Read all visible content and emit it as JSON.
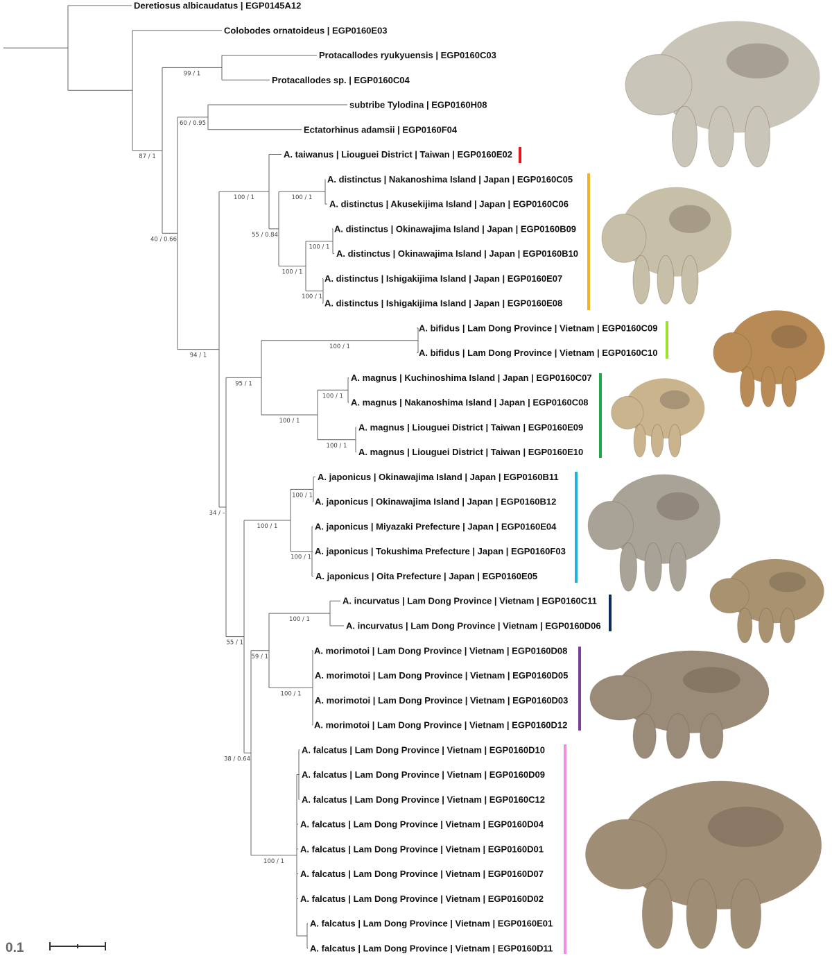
{
  "tips": [
    "Deretiosus albicaudatus | EGP0145A12",
    "Colobodes ornatoideus | EGP0160E03",
    "Protacallodes ryukyuensis | EGP0160C03",
    "Protacallodes sp. | EGP0160C04",
    "subtribe Tylodina | EGP0160H08",
    "Ectatorhinus adamsii | EGP0160F04",
    "A. taiwanus | Liouguei District | Taiwan | EGP0160E02",
    "A. distinctus | Nakanoshima Island | Japan | EGP0160C05",
    "A. distinctus | Akusekijima Island | Japan | EGP0160C06",
    "A. distinctus | Okinawajima Island | Japan | EGP0160B09",
    "A. distinctus | Okinawajima Island | Japan | EGP0160B10",
    "A. distinctus | Ishigakijima Island | Japan | EGP0160E07",
    "A. distinctus | Ishigakijima Island | Japan | EGP0160E08",
    "A. bifidus | Lam Dong Province | Vietnam | EGP0160C09",
    "A. bifidus | Lam Dong Province | Vietnam | EGP0160C10",
    "A. magnus | Kuchinoshima Island | Japan | EGP0160C07",
    "A. magnus | Nakanoshima Island | Japan | EGP0160C08",
    "A. magnus | Liouguei District | Taiwan | EGP0160E09",
    "A. magnus | Liouguei District | Taiwan | EGP0160E10",
    "A. japonicus | Okinawajima Island | Japan | EGP0160B11",
    "A. japonicus | Okinawajima Island | Japan | EGP0160B12",
    "A. japonicus | Miyazaki Prefecture | Japan | EGP0160E04",
    "A. japonicus | Tokushima Prefecture | Japan | EGP0160F03",
    "A. japonicus | Oita Prefecture | Japan | EGP0160E05",
    "A. incurvatus | Lam Dong Province | Vietnam | EGP0160C11",
    "A. incurvatus | Lam Dong Province | Vietnam | EGP0160D06",
    "A. morimotoi | Lam Dong Province | Vietnam | EGP0160D08",
    "A. morimotoi | Lam Dong Province | Vietnam | EGP0160D05",
    "A. morimotoi | Lam Dong Province | Vietnam | EGP0160D03",
    "A. morimotoi | Lam Dong Province | Vietnam | EGP0160D12",
    "A. falcatus | Lam Dong Province | Vietnam | EGP0160D10",
    "A. falcatus | Lam Dong Province | Vietnam | EGP0160D09",
    "A. falcatus | Lam Dong Province | Vietnam | EGP0160C12",
    "A. falcatus | Lam Dong Province | Vietnam | EGP0160D04",
    "A. falcatus | Lam Dong Province | Vietnam | EGP0160D01",
    "A. falcatus | Lam Dong Province | Vietnam | EGP0160D07",
    "A. falcatus | Lam Dong Province | Vietnam | EGP0160D02",
    "A. falcatus | Lam Dong Province | Vietnam | EGP0160E01",
    "A. falcatus | Lam Dong Province | Vietnam | EGP0160D11"
  ],
  "supports": {
    "C": "87 / 1",
    "D": "99 / 1",
    "E": "40 / 0.66",
    "F": "60 / 0.95",
    "G": "94 / 1",
    "H": "100 / 1",
    "J": "55 / 0.84",
    "K": "100 / 1",
    "L": "100 / 1",
    "M": "100 / 1",
    "N": "100 / 1",
    "I": "34 / –",
    "O": "95 / 1",
    "Q": "100 / 1",
    "R": "100 / 1",
    "S": "100 / 1",
    "T": "100 / 1",
    "P": "55 / 1",
    "U": "100 / 1",
    "W": "100 / 1",
    "X": "100 / 1",
    "V": "38 / 0.64",
    "Y": "59 / 1",
    "Inc": "100 / 1",
    "Mor": "100 / 1",
    "Z": "100 / 1"
  },
  "clades": [
    {
      "name": "A. taiwanus",
      "color": "#e8141c"
    },
    {
      "name": "A. distinctus",
      "color": "#f0b323"
    },
    {
      "name": "A. bifidus",
      "color": "#9be22e"
    },
    {
      "name": "A. magnus",
      "color": "#1fa84a"
    },
    {
      "name": "A. japonicus",
      "color": "#1fb0e0"
    },
    {
      "name": "A. incurvatus",
      "color": "#0d2a5e"
    },
    {
      "name": "A. morimotoi",
      "color": "#7a3f9a"
    },
    {
      "name": "A. falcatus",
      "color": "#f08ee6"
    }
  ],
  "scale": {
    "label": "0.1"
  },
  "photo_colors": [
    "#c9c5b8",
    "#c8bfa8",
    "#b88a55",
    "#c9b48e",
    "#a9a397",
    "#a89270",
    "#9a8b78",
    "#a08d76"
  ]
}
